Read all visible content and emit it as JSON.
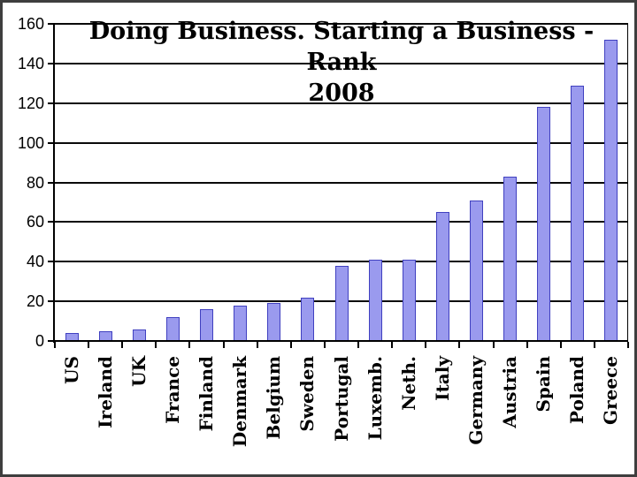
{
  "chart_data": {
    "type": "bar",
    "title": "Doing Business. Starting a Business - Rank 2008",
    "title_lines": [
      "Doing Business. Starting a Business - Rank",
      "2008"
    ],
    "categories": [
      "US",
      "Ireland",
      "UK",
      "France",
      "Finland",
      "Denmark",
      "Belgium",
      "Sweden",
      "Portugal",
      "Luxemb.",
      "Neth.",
      "Italy",
      "Germany",
      "Austria",
      "Spain",
      "Poland",
      "Greece"
    ],
    "values": [
      4,
      5,
      6,
      12,
      16,
      18,
      19,
      22,
      38,
      41,
      41,
      65,
      71,
      83,
      118,
      129,
      152
    ],
    "xlabel": "",
    "ylabel": "",
    "ylim": [
      0,
      160
    ],
    "yticks": [
      0,
      20,
      40,
      60,
      80,
      100,
      120,
      140,
      160
    ],
    "grid": "horizontal",
    "legend": "none",
    "bar_color": "#9a9aee",
    "bar_border_color": "#4040c0",
    "gridline_color": "#0a0a0a",
    "background_color": "#ffffff",
    "frame_color": "#3e3e3e"
  }
}
